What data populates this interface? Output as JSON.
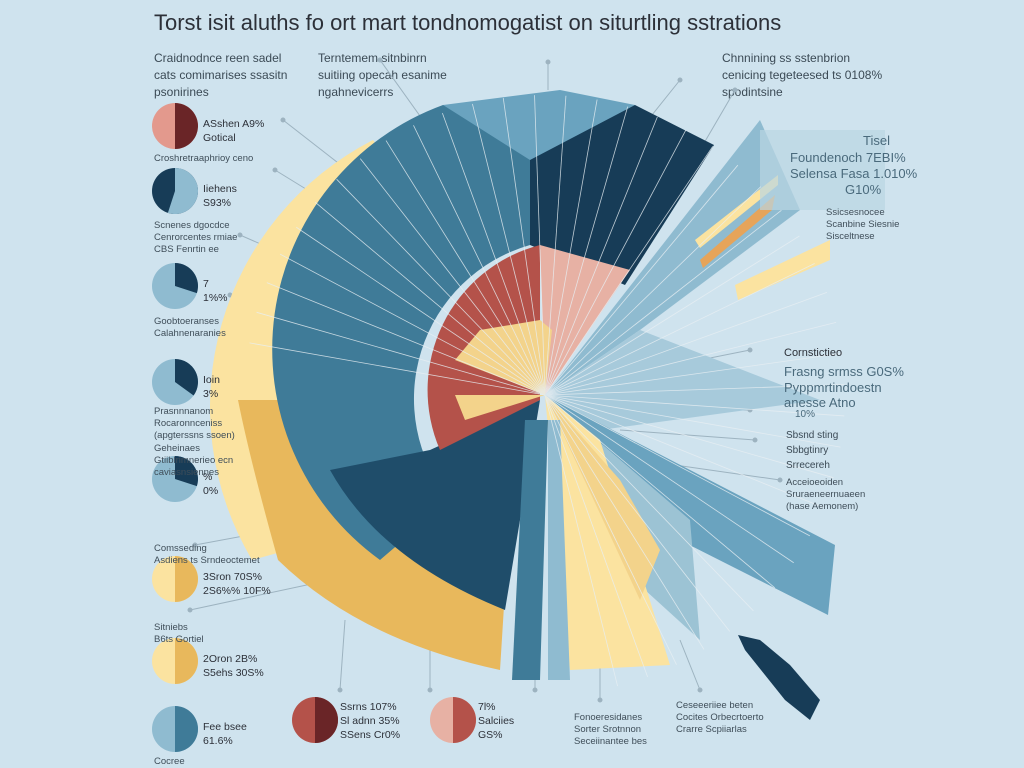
{
  "title": "Torst isit aluths fo ort mart tondnomogatist on siturtling sstrations",
  "top_left_note": [
    "Craidnodnce reen sadel",
    "cats comimarises ssasitn",
    "psonirines"
  ],
  "top_center_note": [
    "Terntemem sitnbinrn",
    "suitiing opecah esanime",
    "ngahnevicerrs"
  ],
  "top_right_note": [
    "Chnnining ss sstenbrion",
    "cenicing tegeteesed ts 0108%",
    "spodintsine"
  ],
  "colors": {
    "background": "#cfe3ee",
    "navy": "#173c57",
    "blue": "#3f7b98",
    "lightblue": "#8fbbd0",
    "yellow": "#fbe3a0",
    "gold": "#e8b85c",
    "red": "#b4524a",
    "pink": "#e7b1a4"
  },
  "left_pies": [
    {
      "text1": "ASshen A9%",
      "text2": "Gotical",
      "caption": [
        "Croshretraaphrioy ceno"
      ],
      "colors": [
        "#e3998d",
        "#6a2527"
      ],
      "split": 0.5
    },
    {
      "text1": "Iiehens",
      "text2": "S93%",
      "caption": [
        "Scnenes dgocdce",
        "Cenrorcentes rmiae",
        "CBS Fenrtin ee"
      ],
      "colors": [
        "#173c57",
        "#8fbbd0"
      ],
      "split": 0.55
    },
    {
      "text1": "7",
      "text2": "1%%",
      "caption": [
        "Goobtoeranses",
        "Calahnenaranies"
      ],
      "colors": [
        "#8fbbd0",
        "#173c57"
      ],
      "split": 0.3
    },
    {
      "text1": "Ioin",
      "text2": "3%",
      "caption": [
        "Prasnnnanom",
        "Rocaronnceniss",
        "(apgterssns ssoen)"
      ],
      "colors": [
        "#8fbbd0",
        "#173c57"
      ],
      "split": 0.35
    },
    {
      "text1": "%",
      "text2": "0%",
      "caption": [
        "Geheinaes",
        "Gtiiblrimnerieo ecn",
        "caviasnsiennes"
      ],
      "colors": [
        "#8fbbd0",
        "#173c57"
      ],
      "split": 0.3
    },
    {
      "text1": "3Sron 70S%",
      "text2": "2S6%% 10F%",
      "caption": [
        "Comsseding",
        "Asdiens ts Srndeoctemet"
      ],
      "colors": [
        "#fbe3a0",
        "#e8b85c"
      ],
      "split": 0.5
    },
    {
      "text1": "2Oron 2B%",
      "text2": "S5ehs 30S%",
      "caption": [
        "Sitniebs",
        "B6ts Gortiel"
      ],
      "colors": [
        "#fbe3a0",
        "#e8b85c"
      ],
      "split": 0.5
    },
    {
      "text1": "Fee bsee",
      "text2": "61.6%",
      "caption": [
        "Cocree"
      ],
      "colors": [
        "#8fbbd0",
        "#3f7b98"
      ],
      "split": 0.5
    }
  ],
  "bottom_pies": [
    {
      "lines": [
        "Ssrns 107%",
        "Sl adnn 35%",
        "SSens Cr0%"
      ],
      "colors": [
        "#b4524a",
        "#6a2527"
      ]
    },
    {
      "lines": [
        "7l%",
        "Salciies",
        "GS%"
      ],
      "colors": [
        "#e7b1a4",
        "#b4524a"
      ]
    }
  ],
  "bottom_notes": [
    [
      "Fonoeresidanes",
      "Sorter Srotnnon",
      "Seceiinantee bes"
    ],
    [
      "Ceseeeriiee beten",
      "Cocites Orbecrtoerto",
      "Crarre Scpiiarlas"
    ]
  ],
  "right_labels": {
    "box": [
      "Tisel",
      "Foundenoch 7EBI%",
      "Selensa Fasa 1.010%",
      "G10%"
    ],
    "box_note": [
      "Ssicsesnocee",
      "Scanbine Siesnie",
      "Sisceltnese"
    ],
    "mid": [
      "Cornstictieo",
      "Frasng srmss  G0S%",
      "Pyppmrtindoestn",
      "anesse Atno",
      "10%"
    ],
    "mid2": [
      "Sbsnd sting",
      "Sbbgtinry",
      "Srrecereh"
    ],
    "mid3": [
      "Acceioeoiden",
      "Sruraeneernuaeen",
      "(hase Aemonem)"
    ]
  },
  "chart_data": {
    "type": "pie",
    "title": "Torst isit aluths fo ort mart tondnomogatist on siturtling sstrations",
    "rings": [
      {
        "name": "outer",
        "color": "#fbe3a0"
      },
      {
        "name": "middle",
        "color": "#3f7b98"
      },
      {
        "name": "inner",
        "color": "#b4524a"
      }
    ],
    "values": [],
    "categories": []
  }
}
